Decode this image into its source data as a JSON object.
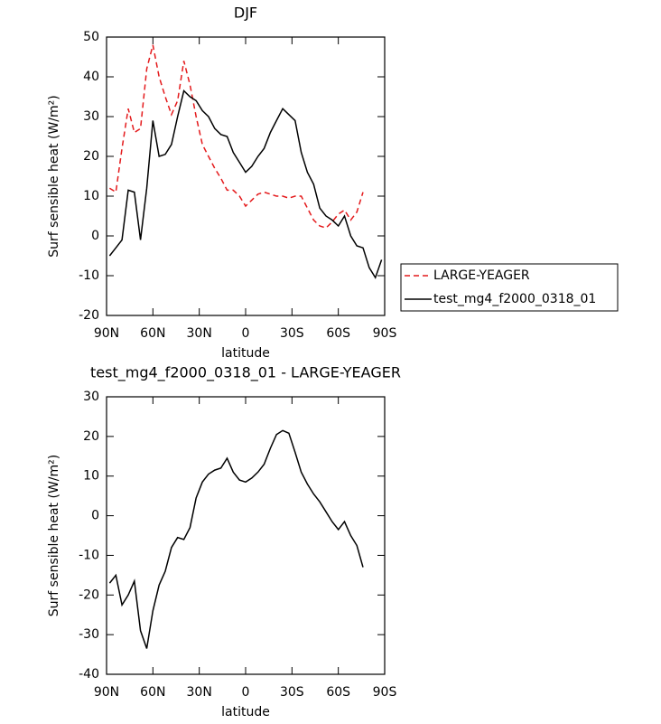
{
  "chart_data": [
    {
      "type": "line",
      "title": "DJF",
      "xlabel": "latitude",
      "ylabel": "Surf sensible heat (W/m²)",
      "x": [
        88,
        84,
        80,
        76,
        72,
        68,
        64,
        60,
        56,
        52,
        48,
        44,
        40,
        36,
        32,
        28,
        24,
        20,
        16,
        12,
        8,
        4,
        0,
        -4,
        -8,
        -12,
        -16,
        -20,
        -24,
        -28,
        -32,
        -36,
        -40,
        -44,
        -48,
        -52,
        -56,
        -60,
        -64,
        -68,
        -72,
        -76,
        -80,
        -84,
        -88
      ],
      "series": [
        {
          "name": "LARGE-YEAGER",
          "color": "#e41a1c",
          "dash": "dashed",
          "values": [
            12,
            11,
            22,
            32,
            26,
            27,
            42,
            48,
            40,
            35,
            30.5,
            34,
            44,
            38,
            30,
            23,
            20,
            17,
            14.5,
            11.5,
            11.5,
            10,
            7.5,
            9,
            10.5,
            11,
            10.5,
            10,
            10,
            9.5,
            10,
            10,
            7,
            4,
            2.5,
            2,
            3.5,
            5.5,
            6.5,
            4,
            6,
            11,
            null,
            null,
            null
          ]
        },
        {
          "name": "test_mg4_f2000_0318_01",
          "color": "#000000",
          "dash": "solid",
          "values": [
            -5,
            -3,
            -1,
            11.5,
            11,
            -1,
            12,
            29,
            20,
            20.5,
            23,
            30,
            36.5,
            35,
            34,
            31.5,
            30,
            27,
            25.5,
            25,
            21,
            18.5,
            16,
            17.5,
            20,
            22,
            26,
            29,
            32,
            30.5,
            29,
            21,
            16,
            13,
            7,
            5,
            4,
            2.5,
            5,
            0,
            -2.5,
            -3,
            -8,
            -10.5,
            -6
          ]
        }
      ],
      "xlim": [
        90,
        -90
      ],
      "xticks": [
        {
          "value": 90,
          "label": "90N"
        },
        {
          "value": 60,
          "label": "60N"
        },
        {
          "value": 30,
          "label": "30N"
        },
        0,
        {
          "value": -30,
          "label": "30S"
        },
        {
          "value": -60,
          "label": "60S"
        },
        {
          "value": -90,
          "label": "90S"
        }
      ],
      "ylim": [
        -20,
        50
      ],
      "yticks": [
        -20,
        -10,
        0,
        10,
        20,
        30,
        40,
        50
      ],
      "legend": "right"
    },
    {
      "type": "line",
      "title": "test_mg4_f2000_0318_01 - LARGE-YEAGER",
      "xlabel": "latitude",
      "ylabel": "Surf sensible heat (W/m²)",
      "x": [
        88,
        84,
        80,
        76,
        72,
        68,
        64,
        60,
        56,
        52,
        48,
        44,
        40,
        36,
        32,
        28,
        24,
        20,
        16,
        12,
        8,
        4,
        0,
        -4,
        -8,
        -12,
        -16,
        -20,
        -24,
        -28,
        -32,
        -36,
        -40,
        -44,
        -48,
        -52,
        -56,
        -60,
        -64,
        -68,
        -72,
        -76
      ],
      "series": [
        {
          "color": "#000000",
          "dash": "solid",
          "values": [
            -17,
            -15,
            -22.5,
            -20,
            -16.5,
            -29,
            -33.5,
            -24,
            -17.5,
            -14,
            -8,
            -5.5,
            -6,
            -3,
            4.5,
            8.5,
            10.5,
            11.5,
            12,
            14.5,
            11,
            9,
            8.5,
            9.5,
            11,
            13,
            17,
            20.5,
            21.5,
            20.8,
            16,
            11,
            8,
            5.5,
            3.5,
            1,
            -1.5,
            -3.5,
            -1.5,
            -5,
            -7.5,
            -13
          ]
        }
      ],
      "xlim": [
        90,
        -90
      ],
      "xticks": [
        {
          "value": 90,
          "label": "90N"
        },
        {
          "value": 60,
          "label": "60N"
        },
        {
          "value": 30,
          "label": "30N"
        },
        0,
        {
          "value": -30,
          "label": "30S"
        },
        {
          "value": -60,
          "label": "60S"
        },
        {
          "value": -90,
          "label": "90S"
        }
      ],
      "ylim": [
        -40,
        30
      ],
      "yticks": [
        -40,
        -30,
        -20,
        -10,
        0,
        10,
        20,
        30
      ]
    }
  ]
}
